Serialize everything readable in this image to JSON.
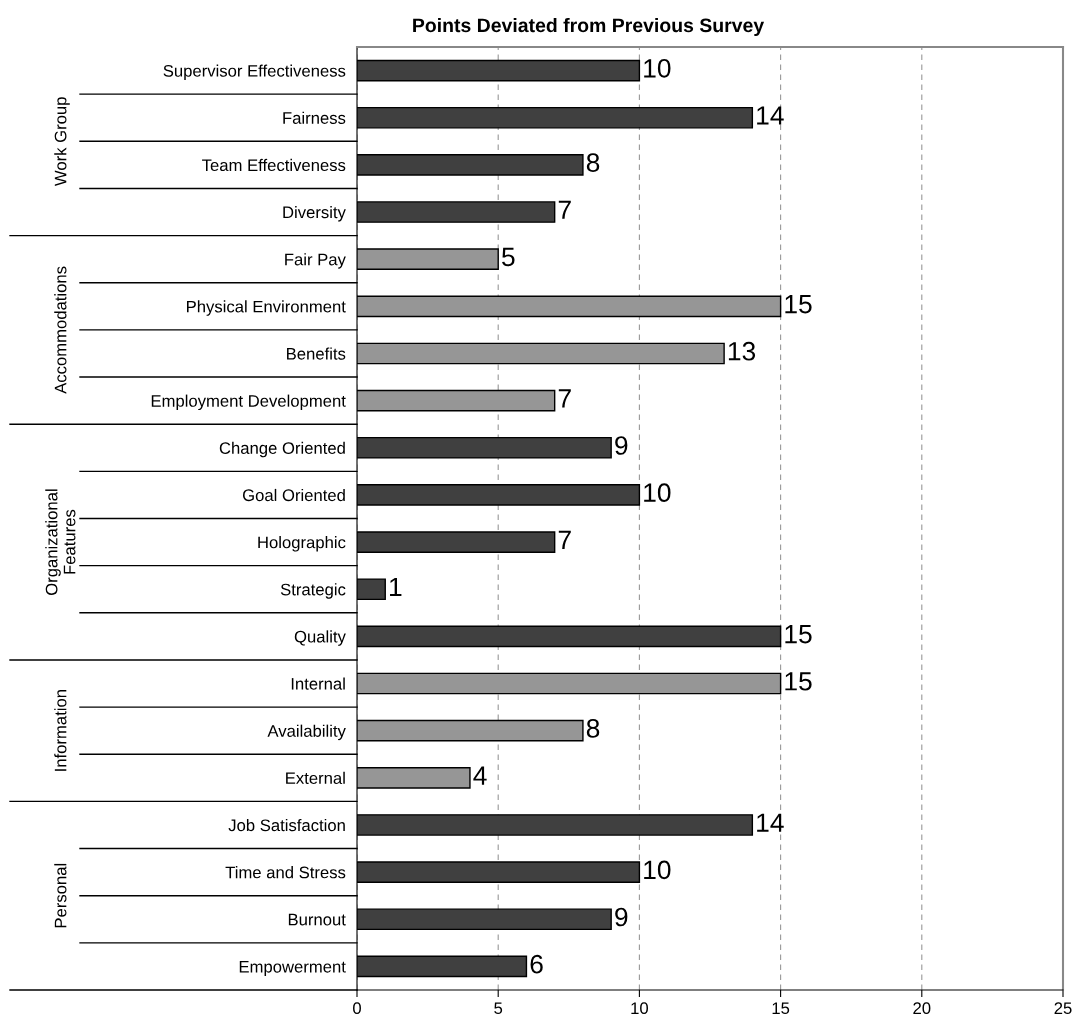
{
  "chart_data": {
    "type": "bar",
    "orientation": "horizontal",
    "title": "Points Deviated from Previous Survey",
    "categories": [
      "Supervisor Effectiveness",
      "Fairness",
      "Team Effectiveness",
      "Diversity",
      "Fair Pay",
      "Physical Environment",
      "Benefits",
      "Employment Development",
      "Change Oriented",
      "Goal Oriented",
      "Holographic",
      "Strategic",
      "Quality",
      "Internal",
      "Availability",
      "External",
      "Job Satisfaction",
      "Time and Stress",
      "Burnout",
      "Empowerment"
    ],
    "values": [
      10,
      14,
      8,
      7,
      5,
      15,
      13,
      7,
      9,
      10,
      7,
      1,
      15,
      15,
      8,
      4,
      14,
      10,
      9,
      6
    ],
    "colors": [
      "#404040",
      "#404040",
      "#404040",
      "#404040",
      "#969696",
      "#969696",
      "#969696",
      "#969696",
      "#404040",
      "#404040",
      "#404040",
      "#404040",
      "#404040",
      "#969696",
      "#969696",
      "#969696",
      "#404040",
      "#404040",
      "#404040",
      "#404040"
    ],
    "data_labels": true,
    "xlim": [
      0,
      25
    ],
    "xticks": [
      0,
      5,
      10,
      15,
      20,
      25
    ],
    "grid": "x",
    "annotations": [
      "Work Group",
      "Accommodations",
      "Organizational\nFeatures",
      "Information",
      "Personal"
    ]
  }
}
